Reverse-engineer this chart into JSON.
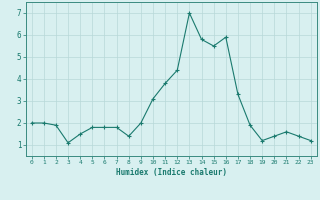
{
  "xlabel": "Humidex (Indice chaleur)",
  "ylabel": "",
  "x": [
    0,
    1,
    2,
    3,
    4,
    5,
    6,
    7,
    8,
    9,
    10,
    11,
    12,
    13,
    14,
    15,
    16,
    17,
    18,
    19,
    20,
    21,
    22,
    23
  ],
  "y": [
    2.0,
    2.0,
    1.9,
    1.1,
    1.5,
    1.8,
    1.8,
    1.8,
    1.4,
    2.0,
    3.1,
    3.8,
    4.4,
    7.0,
    5.8,
    5.5,
    5.9,
    3.3,
    1.9,
    1.2,
    1.4,
    1.6,
    1.4,
    1.2
  ],
  "ylim": [
    0.5,
    7.5
  ],
  "xlim": [
    -0.5,
    23.5
  ],
  "yticks": [
    1,
    2,
    3,
    4,
    5,
    6,
    7
  ],
  "xticks": [
    0,
    1,
    2,
    3,
    4,
    5,
    6,
    7,
    8,
    9,
    10,
    11,
    12,
    13,
    14,
    15,
    16,
    17,
    18,
    19,
    20,
    21,
    22,
    23
  ],
  "line_color": "#1a7a6e",
  "marker_color": "#1a7a6e",
  "bg_color": "#d8f0f0",
  "grid_color": "#b8d8d8",
  "axis_color": "#3a8a80",
  "tick_color": "#1a7a6e",
  "label_color": "#1a7a6e"
}
